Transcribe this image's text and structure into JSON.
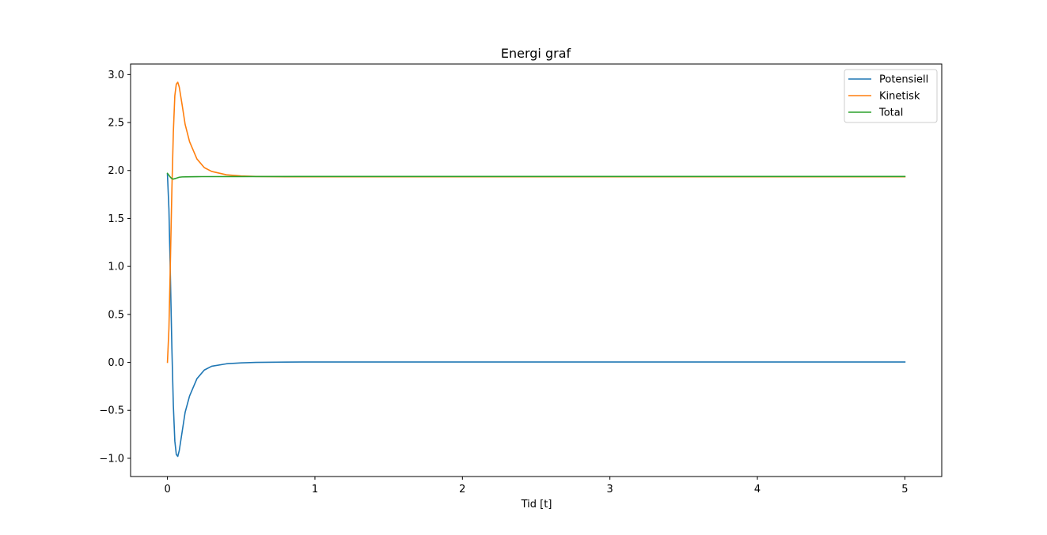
{
  "chart_data": {
    "type": "line",
    "title": "Energi graf",
    "xlabel": "Tid [t]",
    "ylabel": "",
    "xlim": [
      -0.25,
      5.25
    ],
    "ylim": [
      -1.19,
      3.11
    ],
    "xticks": [
      0,
      1,
      2,
      3,
      4,
      5
    ],
    "xtick_labels": [
      "0",
      "1",
      "2",
      "3",
      "4",
      "5"
    ],
    "yticks": [
      -1.0,
      -0.5,
      0.0,
      0.5,
      1.0,
      1.5,
      2.0,
      2.5,
      3.0
    ],
    "ytick_labels": [
      "−1.0",
      "−0.5",
      "0.0",
      "0.5",
      "1.0",
      "1.5",
      "2.0",
      "2.5",
      "3.0"
    ],
    "grid": false,
    "legend_position": "top-right",
    "series": [
      {
        "name": "Potensiell",
        "color": "#1f77b4",
        "x": [
          0,
          0.01,
          0.02,
          0.03,
          0.04,
          0.05,
          0.06,
          0.07,
          0.08,
          0.1,
          0.12,
          0.15,
          0.2,
          0.25,
          0.3,
          0.4,
          0.5,
          0.6,
          0.8,
          1.0,
          2.0,
          3.0,
          4.0,
          5.0
        ],
        "y": [
          1.96,
          1.6,
          0.9,
          0.15,
          -0.45,
          -0.82,
          -0.96,
          -0.98,
          -0.92,
          -0.72,
          -0.52,
          -0.35,
          -0.17,
          -0.08,
          -0.04,
          -0.015,
          -0.005,
          0.0,
          0.003,
          0.004,
          0.004,
          0.004,
          0.004,
          0.004
        ]
      },
      {
        "name": "Kinetisk",
        "color": "#ff7f0e",
        "x": [
          0,
          0.01,
          0.02,
          0.03,
          0.04,
          0.05,
          0.06,
          0.07,
          0.08,
          0.1,
          0.12,
          0.15,
          0.2,
          0.25,
          0.3,
          0.4,
          0.5,
          0.6,
          0.8,
          1.0,
          2.0,
          3.0,
          4.0,
          5.0
        ],
        "y": [
          0.0,
          0.35,
          1.05,
          1.8,
          2.4,
          2.78,
          2.9,
          2.92,
          2.87,
          2.68,
          2.48,
          2.3,
          2.12,
          2.03,
          1.99,
          1.955,
          1.943,
          1.938,
          1.934,
          1.934,
          1.934,
          1.934,
          1.934,
          1.934
        ]
      },
      {
        "name": "Total",
        "color": "#2ca02c",
        "x": [
          0,
          0.01,
          0.02,
          0.03,
          0.04,
          0.05,
          0.06,
          0.08,
          0.1,
          0.15,
          0.2,
          0.5,
          1.0,
          2.0,
          3.0,
          4.0,
          5.0
        ],
        "y": [
          1.97,
          1.95,
          1.93,
          1.915,
          1.91,
          1.915,
          1.92,
          1.93,
          1.933,
          1.935,
          1.936,
          1.937,
          1.938,
          1.938,
          1.938,
          1.938,
          1.938
        ]
      }
    ]
  }
}
